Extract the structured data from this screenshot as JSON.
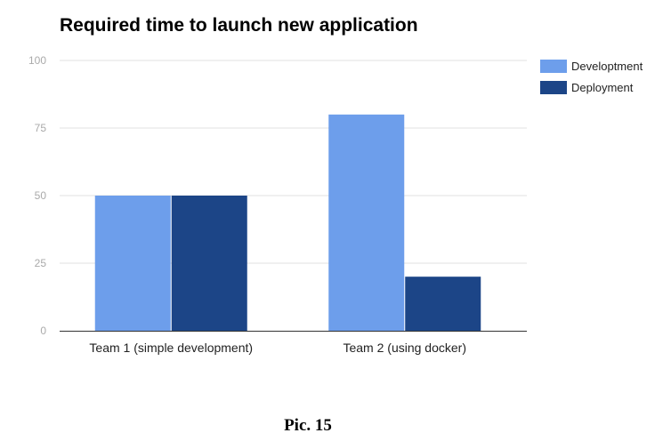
{
  "caption": "Pic. 15",
  "chart_data": {
    "type": "bar",
    "title": "Required time to launch new application",
    "xlabel": "",
    "ylabel": "",
    "categories": [
      "Team 1 (simple development)",
      "Team 2 (using docker)"
    ],
    "series": [
      {
        "name": "Developtment",
        "values": [
          50,
          80
        ],
        "color": "#6d9eeb"
      },
      {
        "name": "Deployment",
        "values": [
          50,
          20
        ],
        "color": "#1c4587"
      }
    ],
    "ylim": [
      0,
      100
    ],
    "yticks": [
      0,
      25,
      50,
      75,
      100
    ],
    "grid": true,
    "legend_position": "right"
  }
}
